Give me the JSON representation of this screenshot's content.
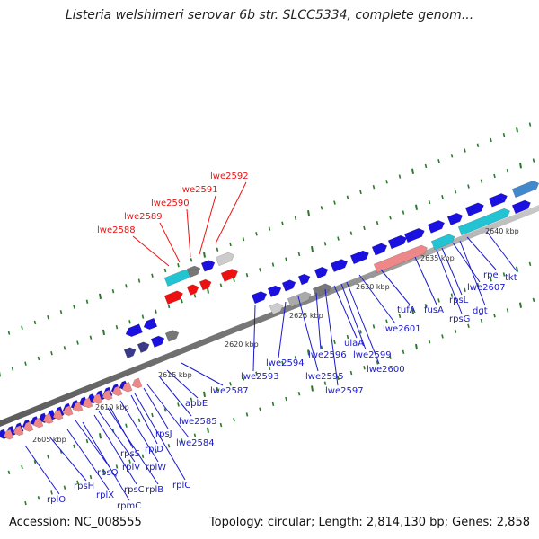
{
  "title": "Listeria welshimeri serovar 6b str. SLCC5334, complete genom...",
  "footer": {
    "accession": "Accession: NC_008555",
    "topology": "Topology: circular; Length: 2,814,130 bp; Genes: 2,858"
  },
  "colors": {
    "forward": "#1a10e0",
    "reverse": "#1a10e0",
    "highlight": "#ee1111",
    "rrna": "#ee8888",
    "trna": "#22c4d4",
    "grey": "#777777",
    "navy": "#3a3a88",
    "backbone": "#888888",
    "tick": "#2a7a2a"
  },
  "scale": {
    "ticks": [
      "2605 kbp",
      "2610 kbp",
      "2615 kbp",
      "2620 kbp",
      "2625 kbp",
      "2630 kbp",
      "2635 kbp",
      "2640 kbp"
    ]
  },
  "genes_highlight": [
    "lwe2588",
    "lwe2589",
    "lwe2590",
    "lwe2591",
    "lwe2592"
  ],
  "genes_bottom": [
    "rplO",
    "rpsH",
    "rplX",
    "rpmC",
    "rpsQ",
    "rpsC",
    "rplV",
    "rplB",
    "rpsS",
    "rplW",
    "rplD",
    "rplC",
    "rpsJ",
    "lwe2584",
    "lwe2585",
    "apbE",
    "lwe2587",
    "lwe2593",
    "lwe2594",
    "lwe2595",
    "lwe2596",
    "lwe2597",
    "ulaA",
    "lwe2599",
    "lwe2600",
    "lwe2601",
    "tufA",
    "fusA",
    "rpsG",
    "rpsL",
    "lwe2607",
    "dgt",
    "rpe",
    "tkt"
  ]
}
